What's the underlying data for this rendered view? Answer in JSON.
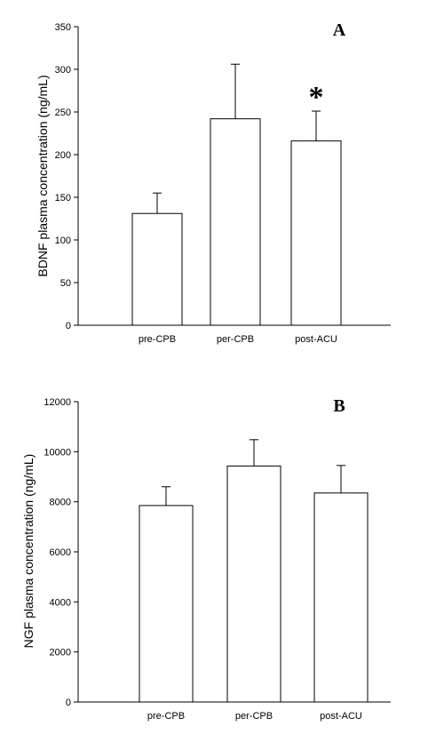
{
  "chart_data": [
    {
      "type": "bar",
      "panel_label": "A",
      "categories": [
        "pre-CPB",
        "per-CPB",
        "post-ACU"
      ],
      "values": [
        131,
        242,
        216
      ],
      "error_plus": [
        24,
        64,
        35
      ],
      "ylabel": "BDNF plasma concentration (ng/mL)",
      "xlabel": "",
      "ylim": [
        0,
        350
      ],
      "yticks": [
        0,
        50,
        100,
        150,
        200,
        250,
        300,
        350
      ],
      "annotations": [
        {
          "text": "*",
          "category": "post-ACU"
        }
      ],
      "colors": {
        "bar_fill": "#ffffff",
        "bar_stroke": "#000000"
      }
    },
    {
      "type": "bar",
      "panel_label": "B",
      "categories": [
        "pre-CPB",
        "per-CPB",
        "post-ACU"
      ],
      "values": [
        7850,
        9430,
        8350
      ],
      "error_plus": [
        750,
        1050,
        1100
      ],
      "ylabel": "NGF plasma concentration (ng/mL)",
      "xlabel": "",
      "ylim": [
        0,
        12000
      ],
      "yticks": [
        0,
        2000,
        4000,
        6000,
        8000,
        10000,
        12000
      ],
      "annotations": [],
      "colors": {
        "bar_fill": "#ffffff",
        "bar_stroke": "#000000"
      }
    }
  ]
}
